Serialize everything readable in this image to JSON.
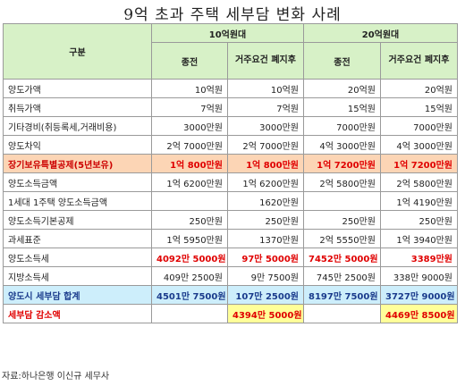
{
  "title": "9억 초과 주택 세부담 변화 사례",
  "header": {
    "category": "구분",
    "groups": [
      "10억원대",
      "20억원대"
    ],
    "subcolumns": [
      "종전",
      "거주요건 폐지후",
      "종전",
      "거주요건 폐지후"
    ]
  },
  "rows": [
    {
      "label": "양도가액",
      "values": [
        "10억원",
        "10억원",
        "20억원",
        "20억원"
      ]
    },
    {
      "label": "취득가액",
      "values": [
        "7억원",
        "7억원",
        "15억원",
        "15억원"
      ]
    },
    {
      "label": "기타경비(취등록세,거래비용)",
      "values": [
        "3000만원",
        "3000만원",
        "7000만원",
        "7000만원"
      ]
    },
    {
      "label": "양도차익",
      "values": [
        "2억 7000만원",
        "2억 7000만원",
        "4억 3000만원",
        "4억 3000만원"
      ]
    },
    {
      "label": "장기보유특별공제",
      "label_suffix": "(5년보유)",
      "values": [
        "1억 800만원",
        "1억 800만원",
        "1억 7200만원",
        "1억 7200만원"
      ]
    },
    {
      "label": "양도소득금액",
      "values": [
        "1억 6200만원",
        "1억 6200만원",
        "2억 5800만원",
        "2억 5800만원"
      ]
    },
    {
      "label": "1세대 1주택 양도소득금액",
      "values": [
        "",
        "1620만원",
        "",
        "1억 4190만원"
      ]
    },
    {
      "label": "양도소득기본공제",
      "values": [
        "250만원",
        "250만원",
        "250만원",
        "250만원"
      ]
    },
    {
      "label": "과세표준",
      "values": [
        "1억 5950만원",
        "1370만원",
        "2억 5550만원",
        "1억 3940만원"
      ]
    },
    {
      "label": "양도소득세",
      "values": [
        "4092만 5000원",
        "97만 5000원",
        "7452만 5000원",
        "3389만원"
      ]
    },
    {
      "label": "지방소득세",
      "values": [
        "409만 2500원",
        "9만 7500원",
        "745만 2500원",
        "338만 9000원"
      ]
    },
    {
      "label": "양도시 세부담 합계",
      "values": [
        "4501만 7500원",
        "107만 2500원",
        "8197만 7500원",
        "3727만 9000원"
      ]
    },
    {
      "label": "세부담 감소액",
      "values": [
        "",
        "4394만 5000원",
        "",
        "4469만 8500원"
      ]
    }
  ],
  "source": "자료:하나은행 이신규 세무사",
  "colors": {
    "header_bg": "#d7f1c7",
    "highlight_bg": "#fcd5b5",
    "total_bg": "#cdeefb",
    "saving_bg": "#ffff99",
    "accent_red": "#e00000",
    "total_text": "#1a3b8c"
  }
}
